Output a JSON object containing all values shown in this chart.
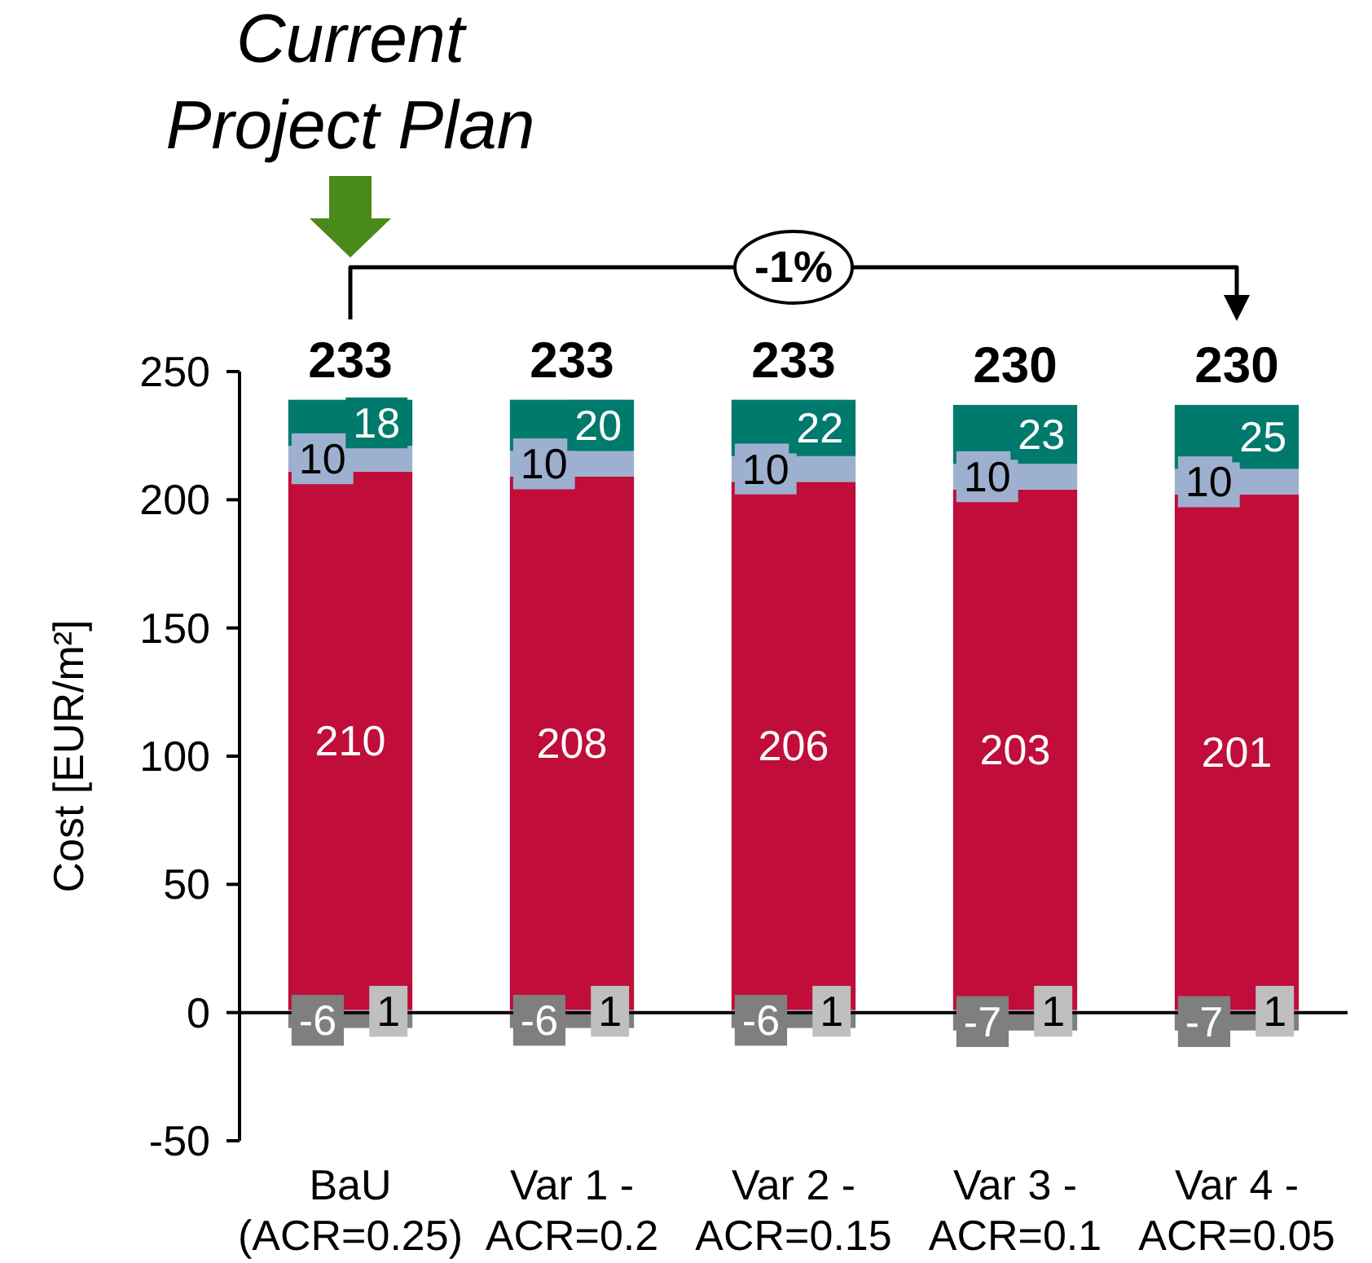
{
  "chart_data": {
    "type": "bar",
    "stacked": true,
    "categories": [
      "BaU (ACR=0.25)",
      "Var 1 - ACR=0.2",
      "Var 2 - ACR=0.15",
      "Var 3 - ACR=0.1",
      "Var 4 - ACR=0.05"
    ],
    "series": [
      {
        "color": "#bfbfbf",
        "values": [
          1,
          1,
          1,
          1,
          1
        ]
      },
      {
        "color": "#c00d3a",
        "values": [
          210,
          208,
          206,
          203,
          201
        ]
      },
      {
        "color": "#9eb0cf",
        "values": [
          10,
          10,
          10,
          10,
          10
        ]
      },
      {
        "color": "#007a6c",
        "values": [
          18,
          20,
          22,
          23,
          25
        ]
      },
      {
        "color": "#7f7f7f",
        "values": [
          -6,
          -6,
          -6,
          -7,
          -7
        ]
      }
    ],
    "ylabel": "Cost [EUR/m²]",
    "ylim": [
      -50,
      250
    ],
    "yticks": [
      -50,
      0,
      50,
      100,
      150,
      200,
      250
    ],
    "data_labels": true,
    "totals": [
      "233",
      "233",
      "233",
      "230",
      "230"
    ],
    "annotations": [
      "Current Project Plan",
      "-1%"
    ]
  }
}
